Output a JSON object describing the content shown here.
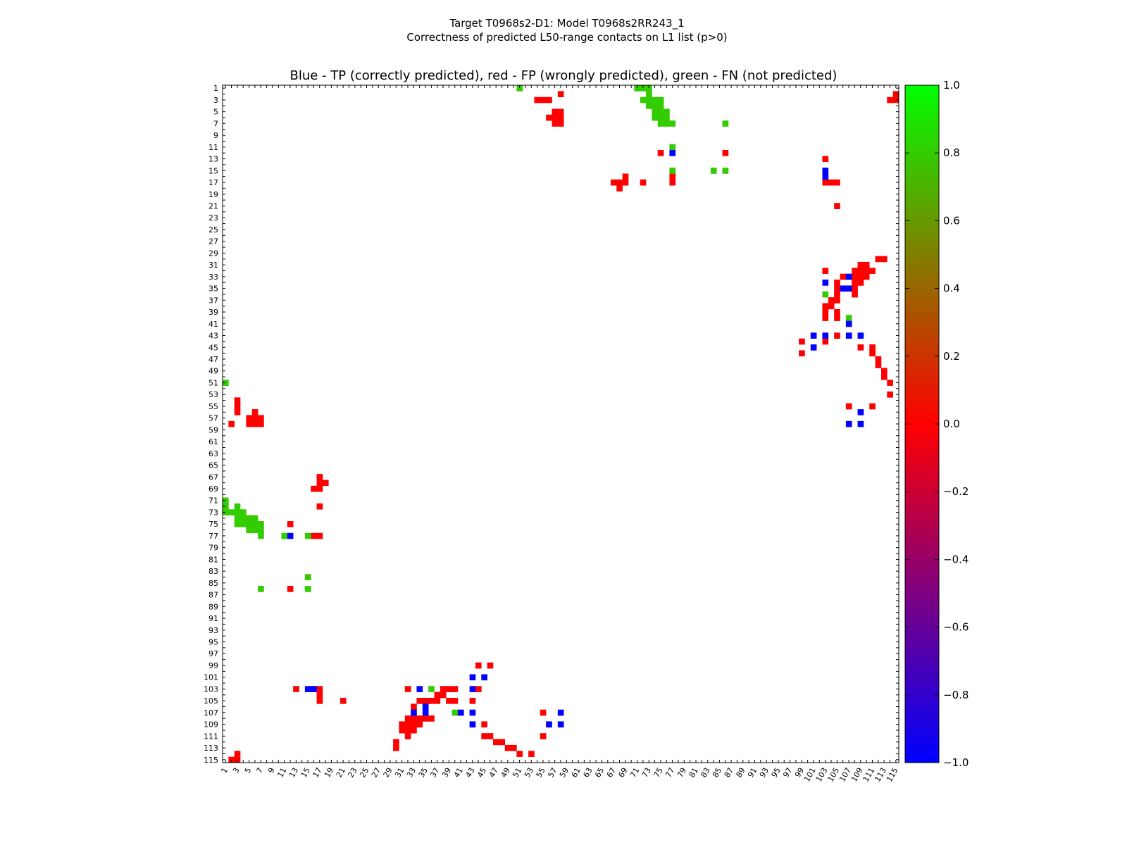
{
  "figure": {
    "title_line1": "Target T0968s2-D1: Model T0968s2RR243_1",
    "title_line2": "Correctness of predicted L50-range contacts on L1 list (p>0)"
  },
  "chart_data": {
    "type": "heatmap",
    "title": "Blue - TP (correctly predicted), red - FP (wrongly predicted), green - FN (not predicted)",
    "xlabel": "",
    "ylabel": "",
    "x_range": [
      1,
      115
    ],
    "y_range": [
      1,
      115
    ],
    "x_tick_labels": [
      "1",
      "3",
      "5",
      "7",
      "9",
      "11",
      "13",
      "15",
      "17",
      "19",
      "21",
      "23",
      "25",
      "27",
      "29",
      "31",
      "33",
      "35",
      "37",
      "39",
      "41",
      "43",
      "45",
      "47",
      "49",
      "51",
      "53",
      "55",
      "57",
      "59",
      "61",
      "63",
      "65",
      "67",
      "69",
      "71",
      "73",
      "75",
      "77",
      "79",
      "81",
      "83",
      "85",
      "87",
      "89",
      "91",
      "93",
      "95",
      "97",
      "99",
      "101",
      "103",
      "105",
      "107",
      "109",
      "111",
      "113",
      "115"
    ],
    "y_tick_labels": [
      "1",
      "3",
      "5",
      "7",
      "9",
      "11",
      "13",
      "15",
      "17",
      "19",
      "21",
      "23",
      "25",
      "27",
      "29",
      "31",
      "33",
      "35",
      "37",
      "39",
      "41",
      "43",
      "45",
      "47",
      "49",
      "51",
      "53",
      "55",
      "57",
      "59",
      "61",
      "63",
      "65",
      "67",
      "69",
      "71",
      "73",
      "75",
      "77",
      "79",
      "81",
      "83",
      "85",
      "87",
      "89",
      "91",
      "93",
      "95",
      "97",
      "99",
      "101",
      "103",
      "105",
      "107",
      "109",
      "111",
      "113",
      "115"
    ],
    "colors": {
      "TP": "#0000ff",
      "FP": "#ff0000",
      "FN": "#33cc00"
    },
    "colorbar": {
      "range": [
        -1.0,
        1.0
      ],
      "ticks": [
        "1.0",
        "0.8",
        "0.6",
        "0.4",
        "0.2",
        "0.0",
        "−0.2",
        "−0.4",
        "−0.6",
        "−0.8",
        "−1.0"
      ],
      "gradient": [
        "#00ff00",
        "#ff0000",
        "#0000ff"
      ]
    },
    "cells": {
      "TP": [
        [
          77,
          12
        ],
        [
          103,
          15
        ],
        [
          103,
          16
        ],
        [
          33,
          107
        ],
        [
          35,
          106
        ],
        [
          35,
          107
        ],
        [
          34,
          103
        ],
        [
          41,
          107
        ],
        [
          43,
          101
        ],
        [
          43,
          103
        ],
        [
          43,
          107
        ],
        [
          43,
          109
        ],
        [
          45,
          101
        ],
        [
          56,
          109
        ],
        [
          58,
          107
        ],
        [
          58,
          109
        ],
        [
          12,
          77
        ],
        [
          15,
          103
        ],
        [
          16,
          103
        ],
        [
          107,
          33
        ],
        [
          106,
          35
        ],
        [
          107,
          35
        ],
        [
          103,
          34
        ],
        [
          107,
          41
        ],
        [
          101,
          43
        ],
        [
          103,
          43
        ],
        [
          107,
          43
        ],
        [
          109,
          43
        ],
        [
          101,
          45
        ],
        [
          109,
          56
        ],
        [
          107,
          58
        ],
        [
          109,
          58
        ]
      ],
      "FN": [
        [
          1,
          51
        ],
        [
          1,
          71
        ],
        [
          1,
          72
        ],
        [
          1,
          73
        ],
        [
          2,
          73
        ],
        [
          3,
          72
        ],
        [
          3,
          73
        ],
        [
          3,
          74
        ],
        [
          3,
          75
        ],
        [
          4,
          73
        ],
        [
          4,
          74
        ],
        [
          4,
          75
        ],
        [
          5,
          74
        ],
        [
          5,
          75
        ],
        [
          5,
          76
        ],
        [
          6,
          74
        ],
        [
          6,
          75
        ],
        [
          6,
          76
        ],
        [
          7,
          75
        ],
        [
          7,
          76
        ],
        [
          7,
          77
        ],
        [
          7,
          86
        ],
        [
          11,
          77
        ],
        [
          15,
          77
        ],
        [
          15,
          84
        ],
        [
          15,
          86
        ],
        [
          36,
          103
        ],
        [
          40,
          107
        ],
        [
          51,
          1
        ],
        [
          71,
          1
        ],
        [
          72,
          1
        ],
        [
          73,
          1
        ],
        [
          73,
          2
        ],
        [
          72,
          3
        ],
        [
          73,
          3
        ],
        [
          74,
          3
        ],
        [
          75,
          3
        ],
        [
          73,
          4
        ],
        [
          74,
          4
        ],
        [
          75,
          4
        ],
        [
          74,
          5
        ],
        [
          75,
          5
        ],
        [
          76,
          5
        ],
        [
          74,
          6
        ],
        [
          75,
          6
        ],
        [
          76,
          6
        ],
        [
          75,
          7
        ],
        [
          76,
          7
        ],
        [
          77,
          7
        ],
        [
          86,
          7
        ],
        [
          77,
          11
        ],
        [
          77,
          15
        ],
        [
          84,
          15
        ],
        [
          86,
          15
        ],
        [
          103,
          36
        ],
        [
          107,
          40
        ]
      ],
      "FP": [
        [
          2,
          58
        ],
        [
          3,
          54
        ],
        [
          3,
          55
        ],
        [
          3,
          56
        ],
        [
          3,
          114
        ],
        [
          3,
          115
        ],
        [
          2,
          115
        ],
        [
          5,
          57
        ],
        [
          5,
          58
        ],
        [
          6,
          56
        ],
        [
          6,
          57
        ],
        [
          6,
          58
        ],
        [
          7,
          57
        ],
        [
          7,
          58
        ],
        [
          12,
          75
        ],
        [
          12,
          86
        ],
        [
          13,
          103
        ],
        [
          16,
          69
        ],
        [
          16,
          77
        ],
        [
          17,
          67
        ],
        [
          17,
          68
        ],
        [
          17,
          69
        ],
        [
          17,
          72
        ],
        [
          17,
          77
        ],
        [
          16,
          103
        ],
        [
          17,
          103
        ],
        [
          17,
          104
        ],
        [
          17,
          105
        ],
        [
          18,
          68
        ],
        [
          21,
          105
        ],
        [
          30,
          112
        ],
        [
          30,
          113
        ],
        [
          31,
          109
        ],
        [
          31,
          110
        ],
        [
          32,
          103
        ],
        [
          32,
          108
        ],
        [
          32,
          109
        ],
        [
          32,
          110
        ],
        [
          32,
          111
        ],
        [
          33,
          106
        ],
        [
          33,
          108
        ],
        [
          33,
          109
        ],
        [
          33,
          110
        ],
        [
          34,
          105
        ],
        [
          34,
          108
        ],
        [
          34,
          109
        ],
        [
          35,
          105
        ],
        [
          35,
          108
        ],
        [
          36,
          105
        ],
        [
          36,
          108
        ],
        [
          37,
          104
        ],
        [
          37,
          105
        ],
        [
          38,
          103
        ],
        [
          38,
          104
        ],
        [
          39,
          103
        ],
        [
          39,
          105
        ],
        [
          40,
          103
        ],
        [
          40,
          105
        ],
        [
          43,
          105
        ],
        [
          44,
          99
        ],
        [
          44,
          103
        ],
        [
          45,
          109
        ],
        [
          45,
          111
        ],
        [
          46,
          99
        ],
        [
          46,
          111
        ],
        [
          47,
          112
        ],
        [
          48,
          112
        ],
        [
          49,
          113
        ],
        [
          50,
          113
        ],
        [
          51,
          114
        ],
        [
          55,
          107
        ],
        [
          55,
          111
        ],
        [
          53,
          114
        ],
        [
          58,
          2
        ],
        [
          54,
          3
        ],
        [
          55,
          3
        ],
        [
          56,
          3
        ],
        [
          114,
          3
        ],
        [
          115,
          3
        ],
        [
          115,
          2
        ],
        [
          57,
          5
        ],
        [
          58,
          5
        ],
        [
          56,
          6
        ],
        [
          57,
          6
        ],
        [
          58,
          6
        ],
        [
          57,
          7
        ],
        [
          58,
          7
        ],
        [
          75,
          12
        ],
        [
          86,
          12
        ],
        [
          103,
          13
        ],
        [
          69,
          16
        ],
        [
          77,
          16
        ],
        [
          67,
          17
        ],
        [
          68,
          17
        ],
        [
          69,
          17
        ],
        [
          72,
          17
        ],
        [
          77,
          17
        ],
        [
          103,
          16
        ],
        [
          103,
          17
        ],
        [
          104,
          17
        ],
        [
          105,
          17
        ],
        [
          68,
          18
        ],
        [
          105,
          21
        ],
        [
          112,
          30
        ],
        [
          113,
          30
        ],
        [
          109,
          31
        ],
        [
          110,
          31
        ],
        [
          103,
          32
        ],
        [
          108,
          32
        ],
        [
          109,
          32
        ],
        [
          110,
          32
        ],
        [
          111,
          32
        ],
        [
          106,
          33
        ],
        [
          108,
          33
        ],
        [
          109,
          33
        ],
        [
          110,
          33
        ],
        [
          105,
          34
        ],
        [
          108,
          34
        ],
        [
          109,
          34
        ],
        [
          105,
          35
        ],
        [
          108,
          35
        ],
        [
          105,
          36
        ],
        [
          108,
          36
        ],
        [
          104,
          37
        ],
        [
          105,
          37
        ],
        [
          103,
          38
        ],
        [
          104,
          38
        ],
        [
          103,
          39
        ],
        [
          105,
          39
        ],
        [
          103,
          40
        ],
        [
          105,
          40
        ],
        [
          105,
          43
        ],
        [
          99,
          44
        ],
        [
          103,
          44
        ],
        [
          109,
          45
        ],
        [
          111,
          45
        ],
        [
          99,
          46
        ],
        [
          111,
          46
        ],
        [
          112,
          47
        ],
        [
          112,
          48
        ],
        [
          113,
          49
        ],
        [
          113,
          50
        ],
        [
          114,
          51
        ],
        [
          107,
          55
        ],
        [
          111,
          55
        ],
        [
          114,
          53
        ]
      ]
    }
  }
}
